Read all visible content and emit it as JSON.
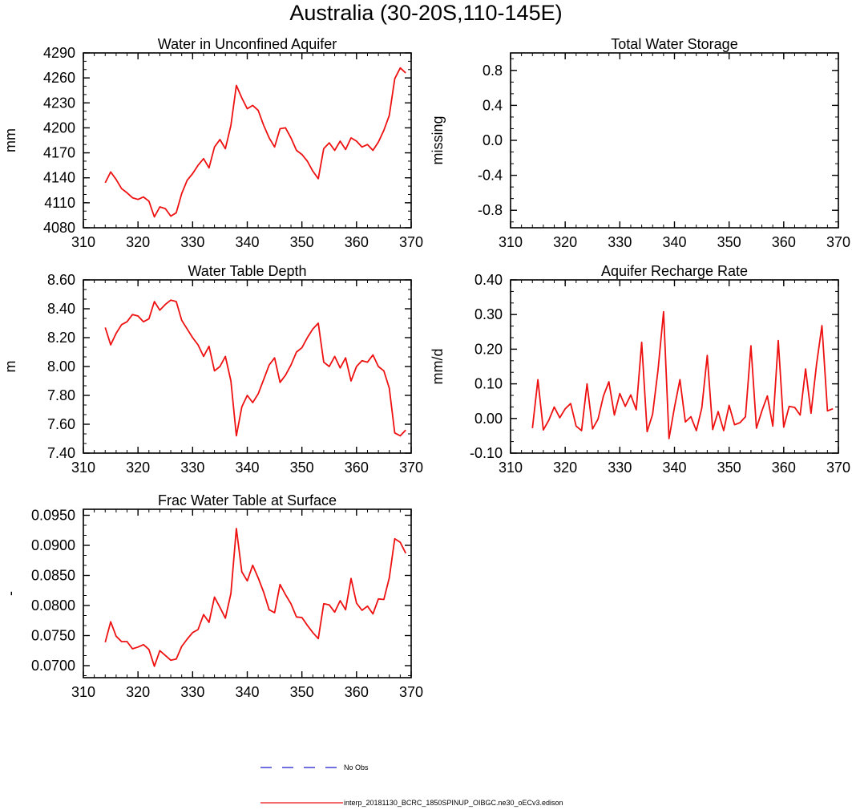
{
  "figure": {
    "title": "Australia (30-20S,110-145E)",
    "series_color": "#ee1111",
    "obs_color": "#1a1acc",
    "legend": {
      "obs_label": "No Obs",
      "model_label": "interp_20181130_BCRC_1850SPINUP_OIBGC.ne30_oECv3.edison"
    }
  },
  "chart_data": [
    {
      "id": "unconfined",
      "type": "line",
      "title": "Water in Unconfined Aquifer",
      "ylabel": "mm",
      "xlim": [
        310,
        370
      ],
      "ylim": [
        4080,
        4290
      ],
      "xticks": [
        310,
        320,
        330,
        340,
        350,
        360,
        370
      ],
      "xtick_labels": [
        "310",
        "320",
        "330",
        "340",
        "350",
        "360",
        "370"
      ],
      "yticks": [
        4080,
        4110,
        4140,
        4170,
        4200,
        4230,
        4260,
        4290
      ],
      "ytick_labels": [
        "4080",
        "4110",
        "4140",
        "4170",
        "4200",
        "4230",
        "4260",
        "4290"
      ],
      "x": [
        314,
        315,
        316,
        317,
        318,
        319,
        320,
        321,
        322,
        323,
        324,
        325,
        326,
        327,
        328,
        329,
        330,
        331,
        332,
        333,
        334,
        335,
        336,
        337,
        338,
        339,
        340,
        341,
        342,
        343,
        344,
        345,
        346,
        347,
        348,
        349,
        350,
        351,
        352,
        353,
        354,
        355,
        356,
        357,
        358,
        359,
        360,
        361,
        362,
        363,
        364,
        365,
        366,
        367,
        368,
        369
      ],
      "y": [
        4134,
        4147,
        4138,
        4127,
        4122,
        4116,
        4114,
        4117,
        4112,
        4093,
        4105,
        4103,
        4094,
        4098,
        4121,
        4137,
        4145,
        4155,
        4163,
        4152,
        4177,
        4186,
        4175,
        4203,
        4251,
        4236,
        4223,
        4227,
        4221,
        4203,
        4188,
        4177,
        4199,
        4200,
        4188,
        4173,
        4168,
        4160,
        4148,
        4139,
        4175,
        4182,
        4173,
        4184,
        4174,
        4188,
        4184,
        4177,
        4180,
        4173,
        4183,
        4197,
        4215,
        4259,
        4272,
        4266
      ]
    },
    {
      "id": "tws",
      "type": "line",
      "title": "Total Water Storage",
      "ylabel": "missing",
      "xlim": [
        310,
        370
      ],
      "ylim": [
        -1.0,
        1.0
      ],
      "xticks": [
        310,
        320,
        330,
        340,
        350,
        360,
        370
      ],
      "xtick_labels": [
        "310",
        "320",
        "330",
        "340",
        "350",
        "360",
        "370"
      ],
      "yticks": [
        -0.8,
        -0.4,
        0.0,
        0.4,
        0.8
      ],
      "ytick_labels": [
        "-0.8",
        "-0.4",
        "0.0",
        "0.4",
        "0.8"
      ],
      "x": [],
      "y": []
    },
    {
      "id": "wtd",
      "type": "line",
      "title": "Water Table Depth",
      "ylabel": "m",
      "xlim": [
        310,
        370
      ],
      "ylim": [
        7.4,
        8.6
      ],
      "xticks": [
        310,
        320,
        330,
        340,
        350,
        360,
        370
      ],
      "xtick_labels": [
        "310",
        "320",
        "330",
        "340",
        "350",
        "360",
        "370"
      ],
      "yticks": [
        7.4,
        7.6,
        7.8,
        8.0,
        8.2,
        8.4,
        8.6
      ],
      "ytick_labels": [
        "7.40",
        "7.60",
        "7.80",
        "8.00",
        "8.20",
        "8.40",
        "8.60"
      ],
      "x": [
        314,
        315,
        316,
        317,
        318,
        319,
        320,
        321,
        322,
        323,
        324,
        325,
        326,
        327,
        328,
        329,
        330,
        331,
        332,
        333,
        334,
        335,
        336,
        337,
        338,
        339,
        340,
        341,
        342,
        343,
        344,
        345,
        346,
        347,
        348,
        349,
        350,
        351,
        352,
        353,
        354,
        355,
        356,
        357,
        358,
        359,
        360,
        361,
        362,
        363,
        364,
        365,
        366,
        367,
        368,
        369
      ],
      "y": [
        8.27,
        8.15,
        8.23,
        8.29,
        8.31,
        8.36,
        8.35,
        8.31,
        8.33,
        8.45,
        8.39,
        8.43,
        8.46,
        8.45,
        8.32,
        8.26,
        8.2,
        8.15,
        8.07,
        8.14,
        7.97,
        8.0,
        8.07,
        7.9,
        7.52,
        7.72,
        7.8,
        7.75,
        7.81,
        7.91,
        8.01,
        8.06,
        7.89,
        7.94,
        8.01,
        8.1,
        8.13,
        8.2,
        8.26,
        8.3,
        8.03,
        8.0,
        8.07,
        7.99,
        8.06,
        7.9,
        8.0,
        8.04,
        8.03,
        8.08,
        8.0,
        7.97,
        7.85,
        7.54,
        7.52,
        7.56
      ]
    },
    {
      "id": "recharge",
      "type": "line",
      "title": "Aquifer Recharge Rate",
      "ylabel": "mm/d",
      "xlim": [
        310,
        370
      ],
      "ylim": [
        -0.1,
        0.4
      ],
      "xticks": [
        310,
        320,
        330,
        340,
        350,
        360,
        370
      ],
      "xtick_labels": [
        "310",
        "320",
        "330",
        "340",
        "350",
        "360",
        "370"
      ],
      "yticks": [
        -0.1,
        0.0,
        0.1,
        0.2,
        0.3,
        0.4
      ],
      "ytick_labels": [
        "-0.10",
        "0.00",
        "0.10",
        "0.20",
        "0.30",
        "0.40"
      ],
      "x": [
        314,
        315,
        316,
        317,
        318,
        319,
        320,
        321,
        322,
        323,
        324,
        325,
        326,
        327,
        328,
        329,
        330,
        331,
        332,
        333,
        334,
        335,
        336,
        337,
        338,
        339,
        340,
        341,
        342,
        343,
        344,
        345,
        346,
        347,
        348,
        349,
        350,
        351,
        352,
        353,
        354,
        355,
        356,
        357,
        358,
        359,
        360,
        361,
        362,
        363,
        364,
        365,
        366,
        367,
        368,
        369
      ],
      "y": [
        -0.028,
        0.112,
        -0.033,
        -0.005,
        0.033,
        0.002,
        0.028,
        0.043,
        -0.022,
        -0.035,
        0.1,
        -0.03,
        -0.002,
        0.065,
        0.106,
        0.01,
        0.072,
        0.035,
        0.068,
        0.025,
        0.22,
        -0.038,
        0.012,
        0.14,
        0.308,
        -0.058,
        0.032,
        0.112,
        -0.01,
        0.005,
        -0.035,
        0.03,
        0.182,
        -0.032,
        0.02,
        -0.035,
        0.038,
        -0.018,
        -0.012,
        0.005,
        0.21,
        -0.028,
        0.022,
        0.065,
        -0.022,
        0.225,
        -0.025,
        0.035,
        0.032,
        0.01,
        0.143,
        0.015,
        0.155,
        0.268,
        0.022,
        0.028
      ]
    },
    {
      "id": "frac",
      "type": "line",
      "title": "Frac Water Table at Surface",
      "ylabel": "-",
      "xlim": [
        310,
        370
      ],
      "ylim": [
        0.068,
        0.096
      ],
      "xticks": [
        310,
        320,
        330,
        340,
        350,
        360,
        370
      ],
      "xtick_labels": [
        "310",
        "320",
        "330",
        "340",
        "350",
        "360",
        "370"
      ],
      "yticks": [
        0.07,
        0.075,
        0.08,
        0.085,
        0.09,
        0.095
      ],
      "ytick_labels": [
        "0.0700",
        "0.0750",
        "0.0800",
        "0.0850",
        "0.0900",
        "0.0950"
      ],
      "x": [
        314,
        315,
        316,
        317,
        318,
        319,
        320,
        321,
        322,
        323,
        324,
        325,
        326,
        327,
        328,
        329,
        330,
        331,
        332,
        333,
        334,
        335,
        336,
        337,
        338,
        339,
        340,
        341,
        342,
        343,
        344,
        345,
        346,
        347,
        348,
        349,
        350,
        351,
        352,
        353,
        354,
        355,
        356,
        357,
        358,
        359,
        360,
        361,
        362,
        363,
        364,
        365,
        366,
        367,
        368,
        369
      ],
      "y": [
        0.0739,
        0.0773,
        0.0749,
        0.074,
        0.074,
        0.0728,
        0.0731,
        0.0735,
        0.0727,
        0.0699,
        0.0725,
        0.0717,
        0.0709,
        0.0711,
        0.0732,
        0.0744,
        0.0755,
        0.076,
        0.0785,
        0.0772,
        0.0814,
        0.0797,
        0.0779,
        0.082,
        0.0928,
        0.0856,
        0.0841,
        0.0867,
        0.0846,
        0.0822,
        0.0793,
        0.0788,
        0.0835,
        0.0818,
        0.0803,
        0.0781,
        0.078,
        0.0767,
        0.0755,
        0.0745,
        0.0803,
        0.0801,
        0.0789,
        0.0808,
        0.0793,
        0.0845,
        0.0804,
        0.0792,
        0.0799,
        0.0786,
        0.0811,
        0.081,
        0.0846,
        0.0911,
        0.0905,
        0.0887
      ]
    }
  ]
}
